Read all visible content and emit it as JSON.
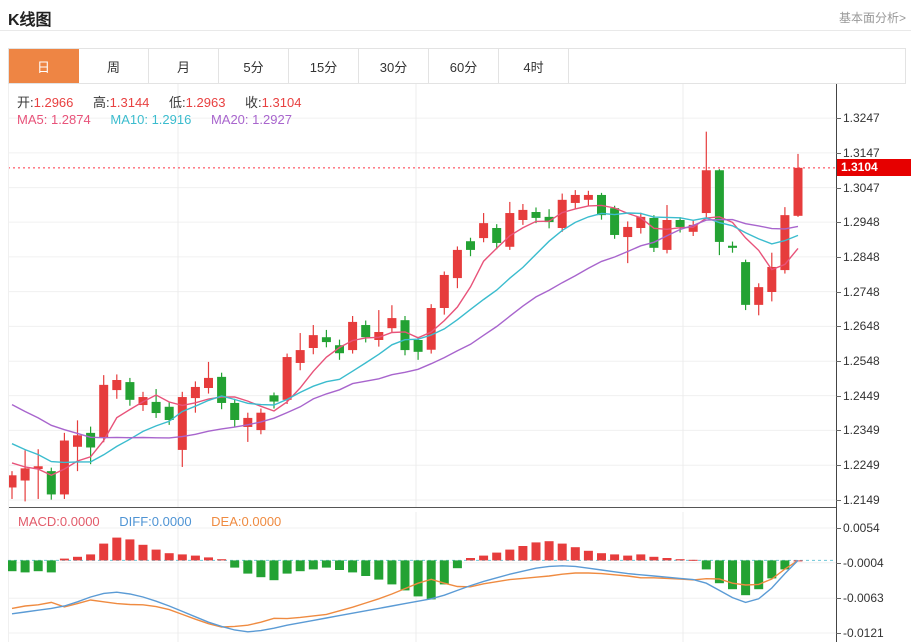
{
  "page": {
    "title": "K线图",
    "link": "基本面分析>"
  },
  "tabs": {
    "items": [
      {
        "label": "日",
        "active": true
      },
      {
        "label": "周",
        "active": false
      },
      {
        "label": "月",
        "active": false
      },
      {
        "label": "5分",
        "active": false
      },
      {
        "label": "15分",
        "active": false
      },
      {
        "label": "30分",
        "active": false
      },
      {
        "label": "60分",
        "active": false
      },
      {
        "label": "4时",
        "active": false
      }
    ]
  },
  "ohlc": {
    "open_label": "开:",
    "open": "1.2966",
    "high_label": "高:",
    "high": "1.3144",
    "low_label": "低:",
    "low": "1.2963",
    "close_label": "收:",
    "close": "1.3104"
  },
  "ma": {
    "ma5_label": "MA5:",
    "ma5": "1.2874",
    "ma10_label": "MA10:",
    "ma10": "1.2916",
    "ma20_label": "MA20:",
    "ma20": "1.2927"
  },
  "macd_header": {
    "macd_label": "MACD:",
    "macd": "0.0000",
    "diff_label": "DIFF:",
    "diff": "0.0000",
    "dea_label": "DEA:",
    "dea": "0.0000"
  },
  "chart_data": {
    "type": "candlestick+macd",
    "title": "K线图",
    "legend_position": "top-left-overlay",
    "grid": true,
    "colors": {
      "up": "#e63c3c",
      "down": "#23a233",
      "ma5": "#e8537a",
      "ma10": "#3bbcce",
      "ma20": "#a865cd",
      "diff_line": "#5b9bd5",
      "dea_line": "#ef8b41",
      "tab_accent": "#ee8544",
      "price_tag_bg": "#e60000",
      "price_line": "#ff3344",
      "zero_dashed": "#6ec6d8"
    },
    "main": {
      "ylim": [
        1.2126,
        1.3345
      ],
      "y_ticks": [
        {
          "label": "1.3247",
          "value": 1.3247
        },
        {
          "label": "1.3147",
          "value": 1.3147
        },
        {
          "label": "1.3047",
          "value": 1.3047
        },
        {
          "label": "1.2948",
          "value": 1.2948
        },
        {
          "label": "1.2848",
          "value": 1.2848
        },
        {
          "label": "1.2748",
          "value": 1.2748
        },
        {
          "label": "1.2648",
          "value": 1.2648
        },
        {
          "label": "1.2548",
          "value": 1.2548
        },
        {
          "label": "1.2449",
          "value": 1.2449
        },
        {
          "label": "1.2349",
          "value": 1.2349
        },
        {
          "label": "1.2249",
          "value": 1.2249
        },
        {
          "label": "1.2149",
          "value": 1.2149
        }
      ],
      "x_gridlines": [
        178,
        416,
        683
      ],
      "ma_periods": [
        5,
        10,
        20
      ],
      "last_price": 1.3104,
      "last_price_label": "1.3104",
      "candles_format": [
        "open",
        "high",
        "low",
        "close"
      ],
      "candles": [
        [
          1.2185,
          1.2232,
          1.2152,
          1.222
        ],
        [
          1.2205,
          1.2292,
          1.2145,
          1.224
        ],
        [
          1.2238,
          1.2295,
          1.2152,
          1.2246
        ],
        [
          1.2232,
          1.2242,
          1.215,
          1.2165
        ],
        [
          1.2165,
          1.2342,
          1.2152,
          1.232
        ],
        [
          1.2302,
          1.2378,
          1.2232,
          1.2335
        ],
        [
          1.2342,
          1.236,
          1.2252,
          1.23
        ],
        [
          1.233,
          1.2508,
          1.2315,
          1.248
        ],
        [
          1.2465,
          1.251,
          1.244,
          1.2494
        ],
        [
          1.2488,
          1.25,
          1.242,
          1.2437
        ],
        [
          1.2422,
          1.246,
          1.2405,
          1.2445
        ],
        [
          1.2431,
          1.2468,
          1.2385,
          1.2399
        ],
        [
          1.2417,
          1.243,
          1.2365,
          1.2379
        ],
        [
          1.2293,
          1.246,
          1.2244,
          1.2445
        ],
        [
          1.2442,
          1.249,
          1.24,
          1.2474
        ],
        [
          1.2471,
          1.2546,
          1.2455,
          1.25
        ],
        [
          1.2503,
          1.2515,
          1.241,
          1.2428
        ],
        [
          1.2428,
          1.244,
          1.236,
          1.2379
        ],
        [
          1.2359,
          1.24,
          1.2316,
          1.2385
        ],
        [
          1.235,
          1.2412,
          1.2338,
          1.24
        ],
        [
          1.245,
          1.2458,
          1.2412,
          1.2432
        ],
        [
          1.2437,
          1.257,
          1.2425,
          1.256
        ],
        [
          1.2543,
          1.2629,
          1.2522,
          1.258
        ],
        [
          1.2586,
          1.2652,
          1.2568,
          1.2623
        ],
        [
          1.2617,
          1.2638,
          1.2588,
          1.2603
        ],
        [
          1.2594,
          1.261,
          1.2552,
          1.2571
        ],
        [
          1.258,
          1.2678,
          1.257,
          1.2661
        ],
        [
          1.2652,
          1.2665,
          1.2602,
          1.2617
        ],
        [
          1.2609,
          1.2695,
          1.259,
          1.2632
        ],
        [
          1.2643,
          1.2709,
          1.2632,
          1.2672
        ],
        [
          1.2666,
          1.2678,
          1.2565,
          1.258
        ],
        [
          1.2609,
          1.2618,
          1.2552,
          1.2575
        ],
        [
          1.2581,
          1.2712,
          1.257,
          1.2701
        ],
        [
          1.2701,
          1.2806,
          1.2682,
          1.2796
        ],
        [
          1.2787,
          1.2878,
          1.2758,
          1.2868
        ],
        [
          1.2893,
          1.2903,
          1.285,
          1.2868
        ],
        [
          1.2902,
          1.2974,
          1.289,
          1.2945
        ],
        [
          1.2931,
          1.2942,
          1.287,
          1.2888
        ],
        [
          1.2877,
          1.3006,
          1.2868,
          1.2974
        ],
        [
          1.2954,
          1.3,
          1.294,
          1.2983
        ],
        [
          1.2977,
          1.299,
          1.2945,
          1.296
        ],
        [
          1.2963,
          1.2985,
          1.293,
          1.2948
        ],
        [
          1.2931,
          1.303,
          1.292,
          1.3012
        ],
        [
          1.3003,
          1.304,
          1.2985,
          1.3026
        ],
        [
          1.3012,
          1.3038,
          1.2995,
          1.3026
        ],
        [
          1.3026,
          1.3032,
          1.2955,
          1.2968
        ],
        [
          1.2988,
          1.2995,
          1.29,
          1.2911
        ],
        [
          1.2905,
          1.295,
          1.283,
          1.2934
        ],
        [
          1.2931,
          1.2975,
          1.2915,
          1.2963
        ],
        [
          1.296,
          1.2968,
          1.2862,
          1.2874
        ],
        [
          1.2868,
          1.2997,
          1.2858,
          1.2954
        ],
        [
          1.2954,
          1.2962,
          1.2918,
          1.2934
        ],
        [
          1.292,
          1.2952,
          1.2908,
          1.294
        ],
        [
          1.2974,
          1.3208,
          1.296,
          1.3097
        ],
        [
          1.3097,
          1.31,
          1.2853,
          1.2891
        ],
        [
          1.288,
          1.2892,
          1.286,
          1.2874
        ],
        [
          1.2833,
          1.284,
          1.2695,
          1.271
        ],
        [
          1.271,
          1.2772,
          1.268,
          1.2761
        ],
        [
          1.2747,
          1.286,
          1.272,
          1.2819
        ],
        [
          1.281,
          1.2991,
          1.28,
          1.2968
        ],
        [
          1.2966,
          1.3144,
          1.2963,
          1.3104
        ]
      ]
    },
    "macd": {
      "ylim": [
        -0.0136,
        0.0081
      ],
      "y_ticks": [
        {
          "label": "0.0054",
          "value": 0.0054
        },
        {
          "label": "-0.0004",
          "value": -0.0004
        },
        {
          "label": "-0.0063",
          "value": -0.0063
        },
        {
          "label": "-0.0121",
          "value": -0.0121
        }
      ],
      "histogram": [
        -0.0018,
        -0.002,
        -0.0018,
        -0.002,
        0.0003,
        0.0006,
        0.001,
        0.0028,
        0.0038,
        0.0035,
        0.0026,
        0.0018,
        0.0012,
        0.001,
        0.0008,
        0.0005,
        0.0002,
        -0.0012,
        -0.0022,
        -0.0028,
        -0.0033,
        -0.0022,
        -0.0018,
        -0.0015,
        -0.0012,
        -0.0016,
        -0.002,
        -0.0026,
        -0.0032,
        -0.004,
        -0.005,
        -0.006,
        -0.0065,
        -0.004,
        -0.0013,
        0.0004,
        0.0008,
        0.0013,
        0.0018,
        0.0024,
        0.003,
        0.0032,
        0.0028,
        0.0022,
        0.0016,
        0.0012,
        0.001,
        0.0008,
        0.001,
        0.0006,
        0.0004,
        0.0002,
        0.0001,
        -0.0015,
        -0.0038,
        -0.0048,
        -0.0058,
        -0.0048,
        -0.003,
        -0.0015,
        0.0
      ],
      "diff": [
        -0.0089,
        -0.0086,
        -0.0083,
        -0.008,
        -0.0076,
        -0.0069,
        -0.0061,
        -0.0055,
        -0.0053,
        -0.0056,
        -0.0061,
        -0.0068,
        -0.0076,
        -0.0085,
        -0.0094,
        -0.0103,
        -0.011,
        -0.0116,
        -0.0119,
        -0.0117,
        -0.0113,
        -0.0108,
        -0.0104,
        -0.01,
        -0.0096,
        -0.0092,
        -0.0088,
        -0.0084,
        -0.008,
        -0.0076,
        -0.0072,
        -0.0068,
        -0.0064,
        -0.0058,
        -0.005,
        -0.0042,
        -0.0035,
        -0.0029,
        -0.0023,
        -0.0018,
        -0.0013,
        -0.001,
        -0.0009,
        -0.001,
        -0.0013,
        -0.0016,
        -0.0019,
        -0.0022,
        -0.0024,
        -0.0026,
        -0.0028,
        -0.003,
        -0.0032,
        -0.0038,
        -0.005,
        -0.0062,
        -0.007,
        -0.0064,
        -0.0046,
        -0.0022,
        0.0
      ]
    }
  }
}
